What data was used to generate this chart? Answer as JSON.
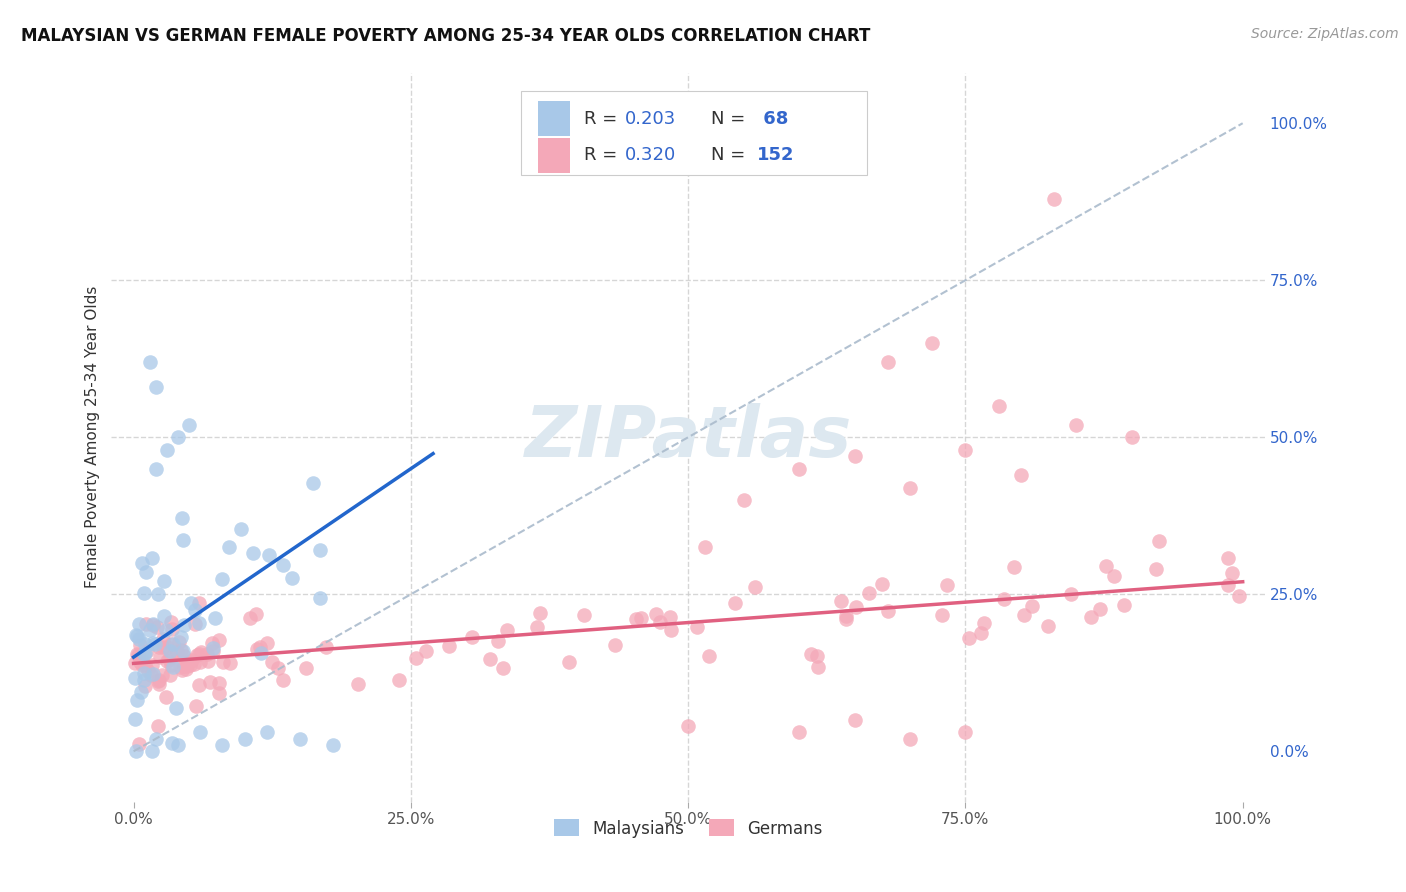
{
  "title": "MALAYSIAN VS GERMAN FEMALE POVERTY AMONG 25-34 YEAR OLDS CORRELATION CHART",
  "source": "Source: ZipAtlas.com",
  "ylabel": "Female Poverty Among 25-34 Year Olds",
  "xlim": [
    -2,
    102
  ],
  "ylim": [
    -8,
    108
  ],
  "right_yticks": [
    0,
    25,
    50,
    75,
    100
  ],
  "right_yticklabels": [
    "0.0%",
    "25.0%",
    "50.0%",
    "75.0%",
    "100.0%"
  ],
  "xticks": [
    0,
    25,
    50,
    75,
    100
  ],
  "xticklabels": [
    "0.0%",
    "25.0%",
    "50.0%",
    "75.0%",
    "100.0%"
  ],
  "malaysian_color": "#a8c8e8",
  "german_color": "#f4a8b8",
  "malaysian_line_color": "#2266cc",
  "german_line_color": "#e06080",
  "dashed_line_color": "#aabbcc",
  "malaysian_R": 0.203,
  "malaysian_N": 68,
  "german_R": 0.32,
  "german_N": 152,
  "text_color": "#3366cc",
  "label_text_color": "#333333",
  "watermark": "ZIPatlas",
  "watermark_color": "#dde8f0",
  "background_color": "#ffffff",
  "grid_color": "#cccccc",
  "seed": 42,
  "title_fontsize": 12,
  "axis_label_fontsize": 11,
  "tick_fontsize": 11,
  "legend_fontsize": 13,
  "source_fontsize": 10
}
